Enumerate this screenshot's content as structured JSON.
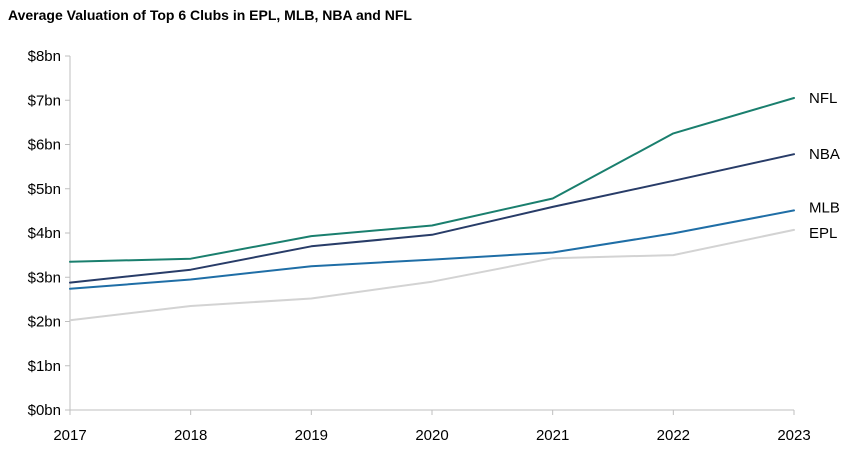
{
  "chart_data": {
    "type": "line",
    "title": "Average Valuation of Top 6 Clubs in EPL, MLB, NBA and NFL",
    "xlabel": "",
    "ylabel": "",
    "x": [
      "2017",
      "2018",
      "2019",
      "2020",
      "2021",
      "2022",
      "2023"
    ],
    "ylim": [
      0,
      8
    ],
    "yticks": [
      0,
      1,
      2,
      3,
      4,
      5,
      6,
      7,
      8
    ],
    "ytick_labels": [
      "$0bn",
      "$1bn",
      "$2bn",
      "$3bn",
      "$4bn",
      "$5bn",
      "$6bn",
      "$7bn",
      "$8bn"
    ],
    "grid": false,
    "legend": "direct-labels-right",
    "series": [
      {
        "name": "NFL",
        "color": "#1a7f6e",
        "values": [
          3.35,
          3.42,
          3.93,
          4.17,
          4.78,
          6.25,
          7.05
        ]
      },
      {
        "name": "NBA",
        "color": "#283c68",
        "values": [
          2.88,
          3.17,
          3.7,
          3.96,
          4.59,
          5.18,
          5.78
        ]
      },
      {
        "name": "MLB",
        "color": "#1f6ea6",
        "values": [
          2.74,
          2.95,
          3.25,
          3.4,
          3.56,
          3.99,
          4.51
        ]
      },
      {
        "name": "EPL",
        "color": "#d3d3d3",
        "values": [
          2.03,
          2.35,
          2.52,
          2.9,
          3.43,
          3.5,
          4.07
        ]
      }
    ]
  }
}
